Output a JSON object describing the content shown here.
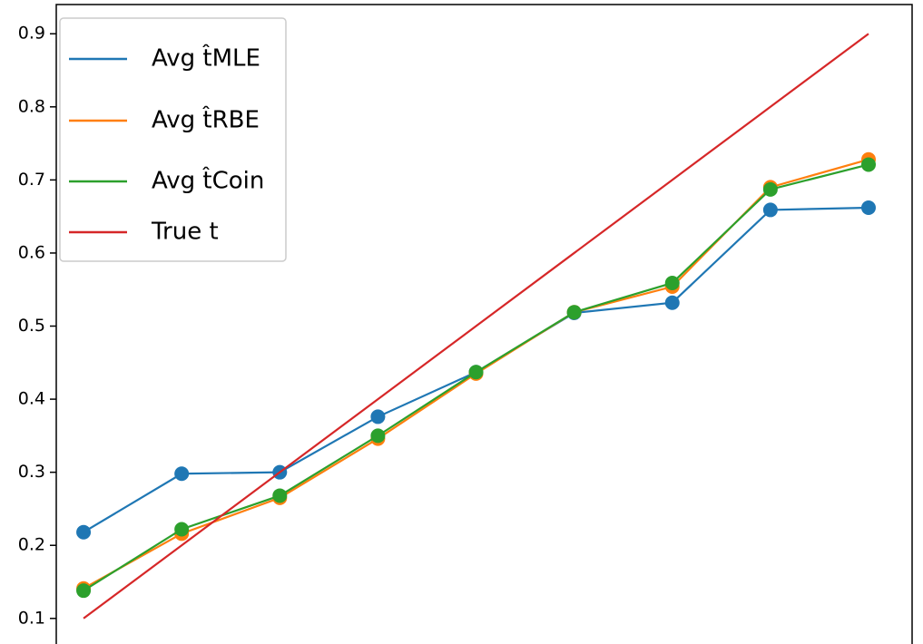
{
  "chart_data": {
    "type": "line",
    "x": [
      0.1,
      0.2,
      0.3,
      0.4,
      0.5,
      0.6,
      0.7,
      0.8,
      0.9
    ],
    "xlim": [
      0.0722,
      0.9444
    ],
    "ylim": [
      0.065,
      0.94
    ],
    "yticks": [
      {
        "value": 0.1,
        "label": "0.1"
      },
      {
        "value": 0.2,
        "label": "0.2"
      },
      {
        "value": 0.3,
        "label": "0.3"
      },
      {
        "value": 0.4,
        "label": "0.4"
      },
      {
        "value": 0.5,
        "label": "0.5"
      },
      {
        "value": 0.6,
        "label": "0.6"
      },
      {
        "value": 0.7,
        "label": "0.7"
      },
      {
        "value": 0.8,
        "label": "0.8"
      },
      {
        "value": 0.9,
        "label": "0.9"
      }
    ],
    "legend": "upper left",
    "series": [
      {
        "name": "Avg t̂MLE",
        "color": "#1f77b4",
        "markers": true,
        "values": [
          0.218,
          0.298,
          0.3,
          0.376,
          0.437,
          0.518,
          0.532,
          0.659,
          0.662
        ]
      },
      {
        "name": "Avg t̂RBE",
        "color": "#ff7f0e",
        "markers": true,
        "values": [
          0.141,
          0.216,
          0.265,
          0.346,
          0.435,
          0.519,
          0.554,
          0.69,
          0.728
        ]
      },
      {
        "name": "Avg t̂Coin",
        "color": "#2ca02c",
        "markers": true,
        "values": [
          0.138,
          0.222,
          0.268,
          0.35,
          0.437,
          0.519,
          0.559,
          0.687,
          0.721
        ]
      },
      {
        "name": "True t",
        "color": "#d62728",
        "markers": false,
        "values": [
          0.1,
          0.2,
          0.3,
          0.4,
          0.5,
          0.6,
          0.7,
          0.8,
          0.9
        ]
      }
    ]
  }
}
